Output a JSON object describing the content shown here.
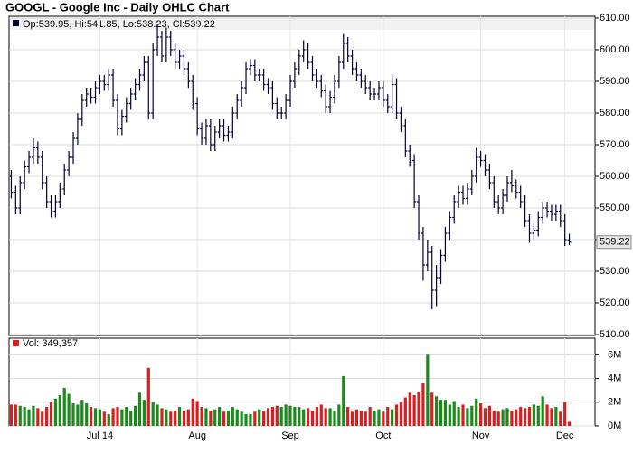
{
  "chart_data": {
    "type": "ohlc",
    "title": "GOOGL - Google Inc - Daily OHLC Chart",
    "legend": "Op:539.95, Hi:541.85, Lo:538.23, Cl:539.22",
    "categories": [
      null,
      null,
      null,
      null,
      null,
      null,
      null,
      null,
      null,
      null,
      null,
      null,
      null,
      null,
      null,
      null,
      null,
      null,
      null,
      null,
      "Jul 14",
      null,
      null,
      null,
      null,
      null,
      null,
      null,
      null,
      null,
      null,
      null,
      null,
      null,
      null,
      null,
      null,
      null,
      null,
      null,
      null,
      null,
      "Aug",
      null,
      null,
      null,
      null,
      null,
      null,
      null,
      null,
      null,
      null,
      null,
      null,
      null,
      null,
      null,
      null,
      null,
      null,
      null,
      null,
      "Sep",
      null,
      null,
      null,
      null,
      null,
      null,
      null,
      null,
      null,
      null,
      null,
      null,
      null,
      null,
      null,
      null,
      null,
      null,
      null,
      null,
      "Oct",
      null,
      null,
      null,
      null,
      null,
      null,
      null,
      null,
      null,
      null,
      null,
      null,
      null,
      null,
      null,
      null,
      null,
      null,
      null,
      null,
      null,
      "Nov",
      null,
      null,
      null,
      null,
      null,
      null,
      null,
      null,
      null,
      null,
      null,
      null,
      null,
      null,
      null,
      null,
      null,
      null,
      "Dec",
      null
    ],
    "open": [
      560,
      555,
      550,
      558,
      563,
      566,
      569,
      566,
      558,
      552,
      549,
      552,
      556,
      562,
      566,
      572,
      578,
      584,
      586,
      585,
      588,
      590,
      589,
      592,
      584,
      575,
      579,
      583,
      586,
      589,
      592,
      596,
      580,
      600,
      604,
      598,
      604,
      600,
      596,
      598,
      594,
      590,
      583,
      575,
      572,
      576,
      570,
      574,
      576,
      573,
      574,
      580,
      584,
      588,
      594,
      595,
      592,
      592,
      589,
      588,
      583,
      580,
      580,
      584,
      590,
      594,
      598,
      600,
      596,
      592,
      590,
      587,
      582,
      585,
      590,
      596,
      602,
      598,
      594,
      592,
      590,
      588,
      586,
      586,
      588,
      584,
      582,
      589,
      580,
      576,
      568,
      565,
      552,
      542,
      532,
      536,
      524,
      528,
      535,
      542,
      547,
      552,
      555,
      553,
      556,
      560,
      566,
      565,
      562,
      558,
      552,
      550,
      554,
      558,
      557,
      555,
      552,
      546,
      542,
      543,
      547,
      550,
      549,
      548,
      549,
      546,
      539.95
    ],
    "high": [
      562,
      557,
      560,
      565,
      568,
      572,
      571,
      568,
      560,
      554,
      554,
      558,
      564,
      568,
      574,
      580,
      586,
      588,
      588,
      590,
      592,
      592,
      594,
      594,
      586,
      581,
      585,
      588,
      591,
      594,
      598,
      598,
      602,
      608,
      606,
      607,
      606,
      602,
      600,
      600,
      596,
      592,
      585,
      577,
      578,
      578,
      576,
      578,
      578,
      576,
      582,
      586,
      590,
      596,
      597,
      597,
      594,
      594,
      591,
      590,
      585,
      582,
      586,
      592,
      596,
      600,
      603,
      602,
      598,
      594,
      592,
      589,
      587,
      592,
      598,
      605,
      604,
      600,
      596,
      594,
      592,
      590,
      588,
      590,
      590,
      586,
      592,
      591,
      582,
      578,
      570,
      567,
      554,
      544,
      540,
      538,
      532,
      537,
      544,
      549,
      554,
      557,
      557,
      558,
      562,
      569,
      568,
      567,
      564,
      560,
      554,
      556,
      560,
      562,
      559,
      557,
      554,
      548,
      545,
      549,
      552,
      552,
      551,
      551,
      551,
      548,
      541.85
    ],
    "low": [
      553,
      548,
      548,
      556,
      561,
      564,
      564,
      556,
      550,
      547,
      547,
      550,
      554,
      560,
      564,
      570,
      576,
      582,
      583,
      583,
      586,
      587,
      587,
      582,
      573,
      573,
      577,
      581,
      584,
      587,
      590,
      578,
      578,
      598,
      596,
      596,
      598,
      594,
      594,
      592,
      588,
      581,
      573,
      570,
      570,
      568,
      568,
      572,
      571,
      571,
      572,
      578,
      582,
      586,
      592,
      590,
      590,
      587,
      586,
      581,
      578,
      578,
      578,
      582,
      588,
      592,
      596,
      594,
      590,
      588,
      585,
      580,
      580,
      583,
      588,
      594,
      596,
      592,
      590,
      588,
      586,
      584,
      584,
      584,
      582,
      580,
      580,
      578,
      574,
      566,
      563,
      550,
      540,
      527,
      530,
      518,
      519,
      526,
      533,
      540,
      545,
      550,
      551,
      551,
      554,
      558,
      563,
      560,
      556,
      550,
      548,
      548,
      552,
      555,
      553,
      550,
      544,
      539,
      540,
      541,
      545,
      547,
      546,
      546,
      544,
      538,
      538.23
    ],
    "close": [
      555,
      550,
      558,
      563,
      566,
      569,
      566,
      558,
      552,
      549,
      552,
      556,
      562,
      566,
      572,
      578,
      584,
      586,
      585,
      588,
      590,
      589,
      592,
      584,
      575,
      579,
      583,
      586,
      589,
      592,
      596,
      580,
      600,
      604,
      598,
      604,
      600,
      596,
      598,
      594,
      590,
      583,
      575,
      572,
      576,
      570,
      574,
      576,
      573,
      574,
      580,
      584,
      588,
      594,
      595,
      592,
      592,
      589,
      588,
      583,
      580,
      580,
      584,
      590,
      594,
      598,
      600,
      596,
      592,
      590,
      587,
      582,
      585,
      590,
      596,
      602,
      598,
      594,
      592,
      590,
      588,
      586,
      586,
      588,
      584,
      582,
      589,
      580,
      576,
      568,
      565,
      552,
      542,
      532,
      536,
      524,
      528,
      535,
      542,
      547,
      552,
      555,
      553,
      556,
      560,
      566,
      565,
      562,
      558,
      552,
      550,
      554,
      558,
      557,
      555,
      552,
      546,
      542,
      543,
      547,
      550,
      549,
      548,
      549,
      546,
      540,
      539.22
    ],
    "ylim": [
      510,
      610
    ],
    "yticks": [
      {
        "value": 510,
        "label": "510.00"
      },
      {
        "value": 520,
        "label": "520.00"
      },
      {
        "value": 530,
        "label": "530.00"
      },
      {
        "value": 540,
        "label": "540.00"
      },
      {
        "value": 550,
        "label": "550.00"
      },
      {
        "value": 560,
        "label": "560.00"
      },
      {
        "value": 570,
        "label": "570.00"
      },
      {
        "value": 580,
        "label": "580.00"
      },
      {
        "value": 590,
        "label": "590.00"
      },
      {
        "value": 600,
        "label": "600.00"
      },
      {
        "value": 610,
        "label": "610.00"
      }
    ],
    "grid": true,
    "bar_color": "#000033",
    "up_color": "#1a8a1a",
    "down_color": "#d42020",
    "volume": {
      "label": "Vol: 349,357",
      "values": [
        1800000,
        1800000,
        1700000,
        1600000,
        1400000,
        1700000,
        1500000,
        1200000,
        1600000,
        2000000,
        2300000,
        2600000,
        3200000,
        2700000,
        1900000,
        1800000,
        2200000,
        1900000,
        1600000,
        1500000,
        1400000,
        1200000,
        1000000,
        1500000,
        1600000,
        1400000,
        1600000,
        1300000,
        1700000,
        2800000,
        2200000,
        4900000,
        2000000,
        1800000,
        1500000,
        1400000,
        1200000,
        1300000,
        1600000,
        1300000,
        1400000,
        2300000,
        2100000,
        1600000,
        1500000,
        1300000,
        1400000,
        1600000,
        1200000,
        1300000,
        1600000,
        1400000,
        1200000,
        1000000,
        1000000,
        1200000,
        1400000,
        1300000,
        1500000,
        1600000,
        1700000,
        1600000,
        1800000,
        1700000,
        1600000,
        1600000,
        1400000,
        1500000,
        1300000,
        1600000,
        1800000,
        1500000,
        1500000,
        1300000,
        1800000,
        4200000,
        1600000,
        1200000,
        1400000,
        1300000,
        1200000,
        1600000,
        1300000,
        1400000,
        1200000,
        1600000,
        1400000,
        1800000,
        2000000,
        2400000,
        2800000,
        2600000,
        2900000,
        3600000,
        6000000,
        2800000,
        2500000,
        2200000,
        2200000,
        1800000,
        2100000,
        1600000,
        1800000,
        1500000,
        1700000,
        2300000,
        1900000,
        1500000,
        1700000,
        1300000,
        1200000,
        1400000,
        1500000,
        1300000,
        1400000,
        1600000,
        1500000,
        1600000,
        1800000,
        1700000,
        2500000,
        1800000,
        1500000,
        1600000,
        1200000,
        2000000,
        349357
      ],
      "ylim": [
        0,
        7400000
      ],
      "yticks": [
        {
          "value": 0,
          "label": "0M"
        },
        {
          "value": 2000000,
          "label": "2M"
        },
        {
          "value": 4000000,
          "label": "4M"
        },
        {
          "value": 6000000,
          "label": "6M"
        }
      ]
    }
  }
}
